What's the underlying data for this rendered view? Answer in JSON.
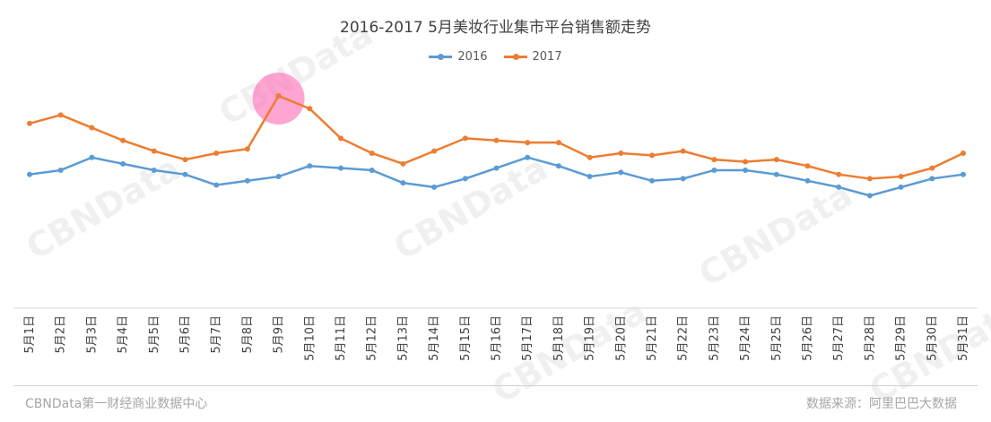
{
  "colors": {
    "series_2016": "#5b9bd5",
    "series_2017": "#ed7d31",
    "highlight": "#ff69b4",
    "axis": "#d9d9d9"
  },
  "chart_data": {
    "type": "line",
    "title": "2016-2017 5月美妆行业集市平台销售额走势",
    "categories": [
      "5月1日",
      "5月2日",
      "5月3日",
      "5月4日",
      "5月5日",
      "5月6日",
      "5月7日",
      "5月8日",
      "5月9日",
      "5月10日",
      "5月11日",
      "5月12日",
      "5月13日",
      "5月14日",
      "5月15日",
      "5月16日",
      "5月17日",
      "5月18日",
      "5月19日",
      "5月20日",
      "5月21日",
      "5月22日",
      "5月23日",
      "5月24日",
      "5月25日",
      "5月26日",
      "5月27日",
      "5月28日",
      "5月29日",
      "5月30日",
      "5月31日"
    ],
    "series": [
      {
        "name": "2016",
        "values": [
          63,
          65,
          71,
          68,
          65,
          63,
          58,
          60,
          62,
          67,
          66,
          65,
          59,
          57,
          61,
          66,
          71,
          67,
          62,
          64,
          60,
          61,
          65,
          65,
          63,
          60,
          57,
          53,
          57,
          61,
          63
        ]
      },
      {
        "name": "2017",
        "values": [
          87,
          91,
          85,
          79,
          74,
          70,
          73,
          75,
          100,
          94,
          80,
          73,
          68,
          74,
          80,
          79,
          78,
          78,
          71,
          73,
          72,
          74,
          70,
          69,
          70,
          67,
          63,
          61,
          62,
          66,
          73
        ]
      }
    ],
    "y_hidden": true,
    "grid": false,
    "legend_position": "top-center",
    "annotations": [
      {
        "type": "highlight-circle",
        "category": "5月9日",
        "series": "2017"
      }
    ]
  },
  "watermark": "CBNData",
  "watermark_sub": "第一财经商业数据中心",
  "footer": {
    "left": "CBNData第一财经商业数据中心",
    "right": "数据来源：阿里巴巴大数据"
  }
}
